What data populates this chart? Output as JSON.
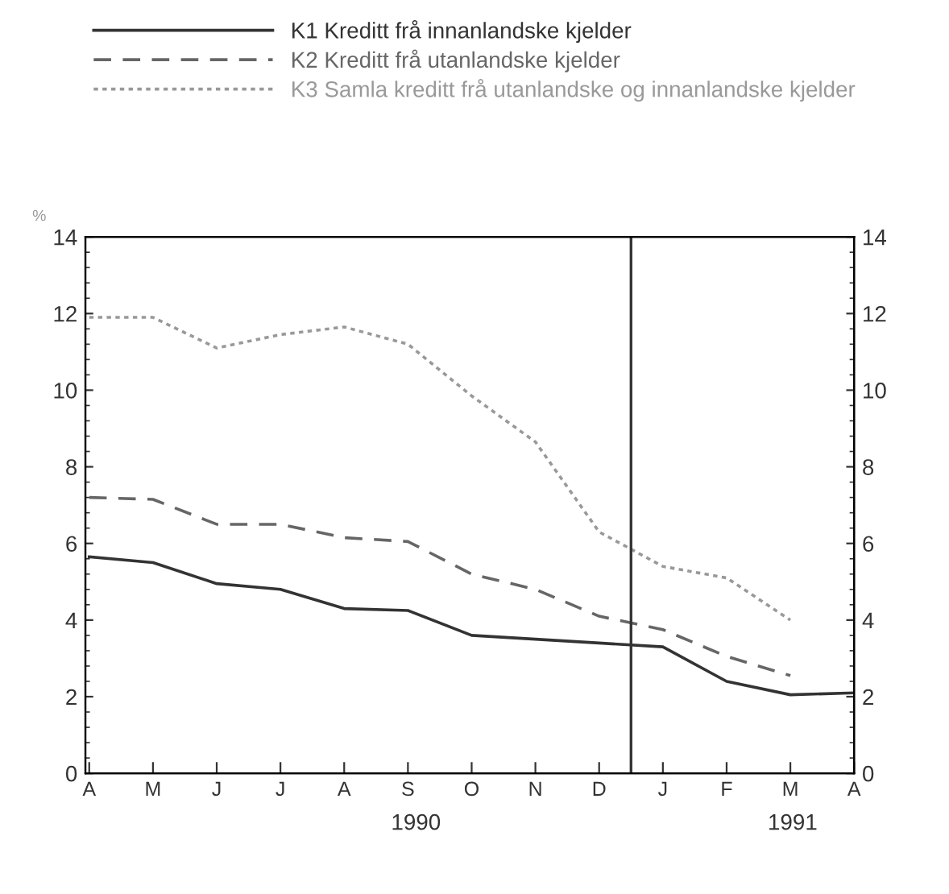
{
  "chart_data": {
    "type": "line",
    "ylabel": "%",
    "categories": [
      "A",
      "M",
      "J",
      "J",
      "A",
      "S",
      "O",
      "N",
      "D",
      "J",
      "F",
      "M",
      "A"
    ],
    "series": [
      {
        "name": "K1 Kreditt frå innanlandske kjelder",
        "color": "#333333",
        "line_style": "solid",
        "values": [
          5.65,
          5.5,
          4.95,
          4.8,
          4.3,
          4.25,
          3.6,
          3.5,
          3.4,
          3.3,
          2.4,
          2.05,
          2.1
        ]
      },
      {
        "name": "K2 Kreditt frå utanlandske kjelder",
        "color": "#666666",
        "line_style": "dashed",
        "values": [
          7.2,
          7.15,
          6.5,
          6.5,
          6.15,
          6.05,
          5.2,
          4.8,
          4.1,
          3.75,
          3.05,
          2.55,
          null
        ]
      },
      {
        "name": "K3 Samla kreditt frå utanlandske og innanlandske kjelder",
        "color": "#999999",
        "line_style": "dotted",
        "values": [
          11.9,
          11.9,
          11.1,
          11.45,
          11.65,
          11.2,
          9.85,
          8.65,
          6.3,
          5.4,
          5.1,
          4.0,
          null
        ]
      }
    ],
    "ylim": [
      0,
      14
    ],
    "yticks": [
      0,
      2,
      4,
      6,
      8,
      10,
      12,
      14
    ],
    "y2lim": [
      0,
      14
    ],
    "y2ticks": [
      0,
      2,
      4,
      6,
      8,
      10,
      12,
      14
    ],
    "annotations": [
      "1990",
      "1991"
    ],
    "legend": "top",
    "grid": false
  }
}
